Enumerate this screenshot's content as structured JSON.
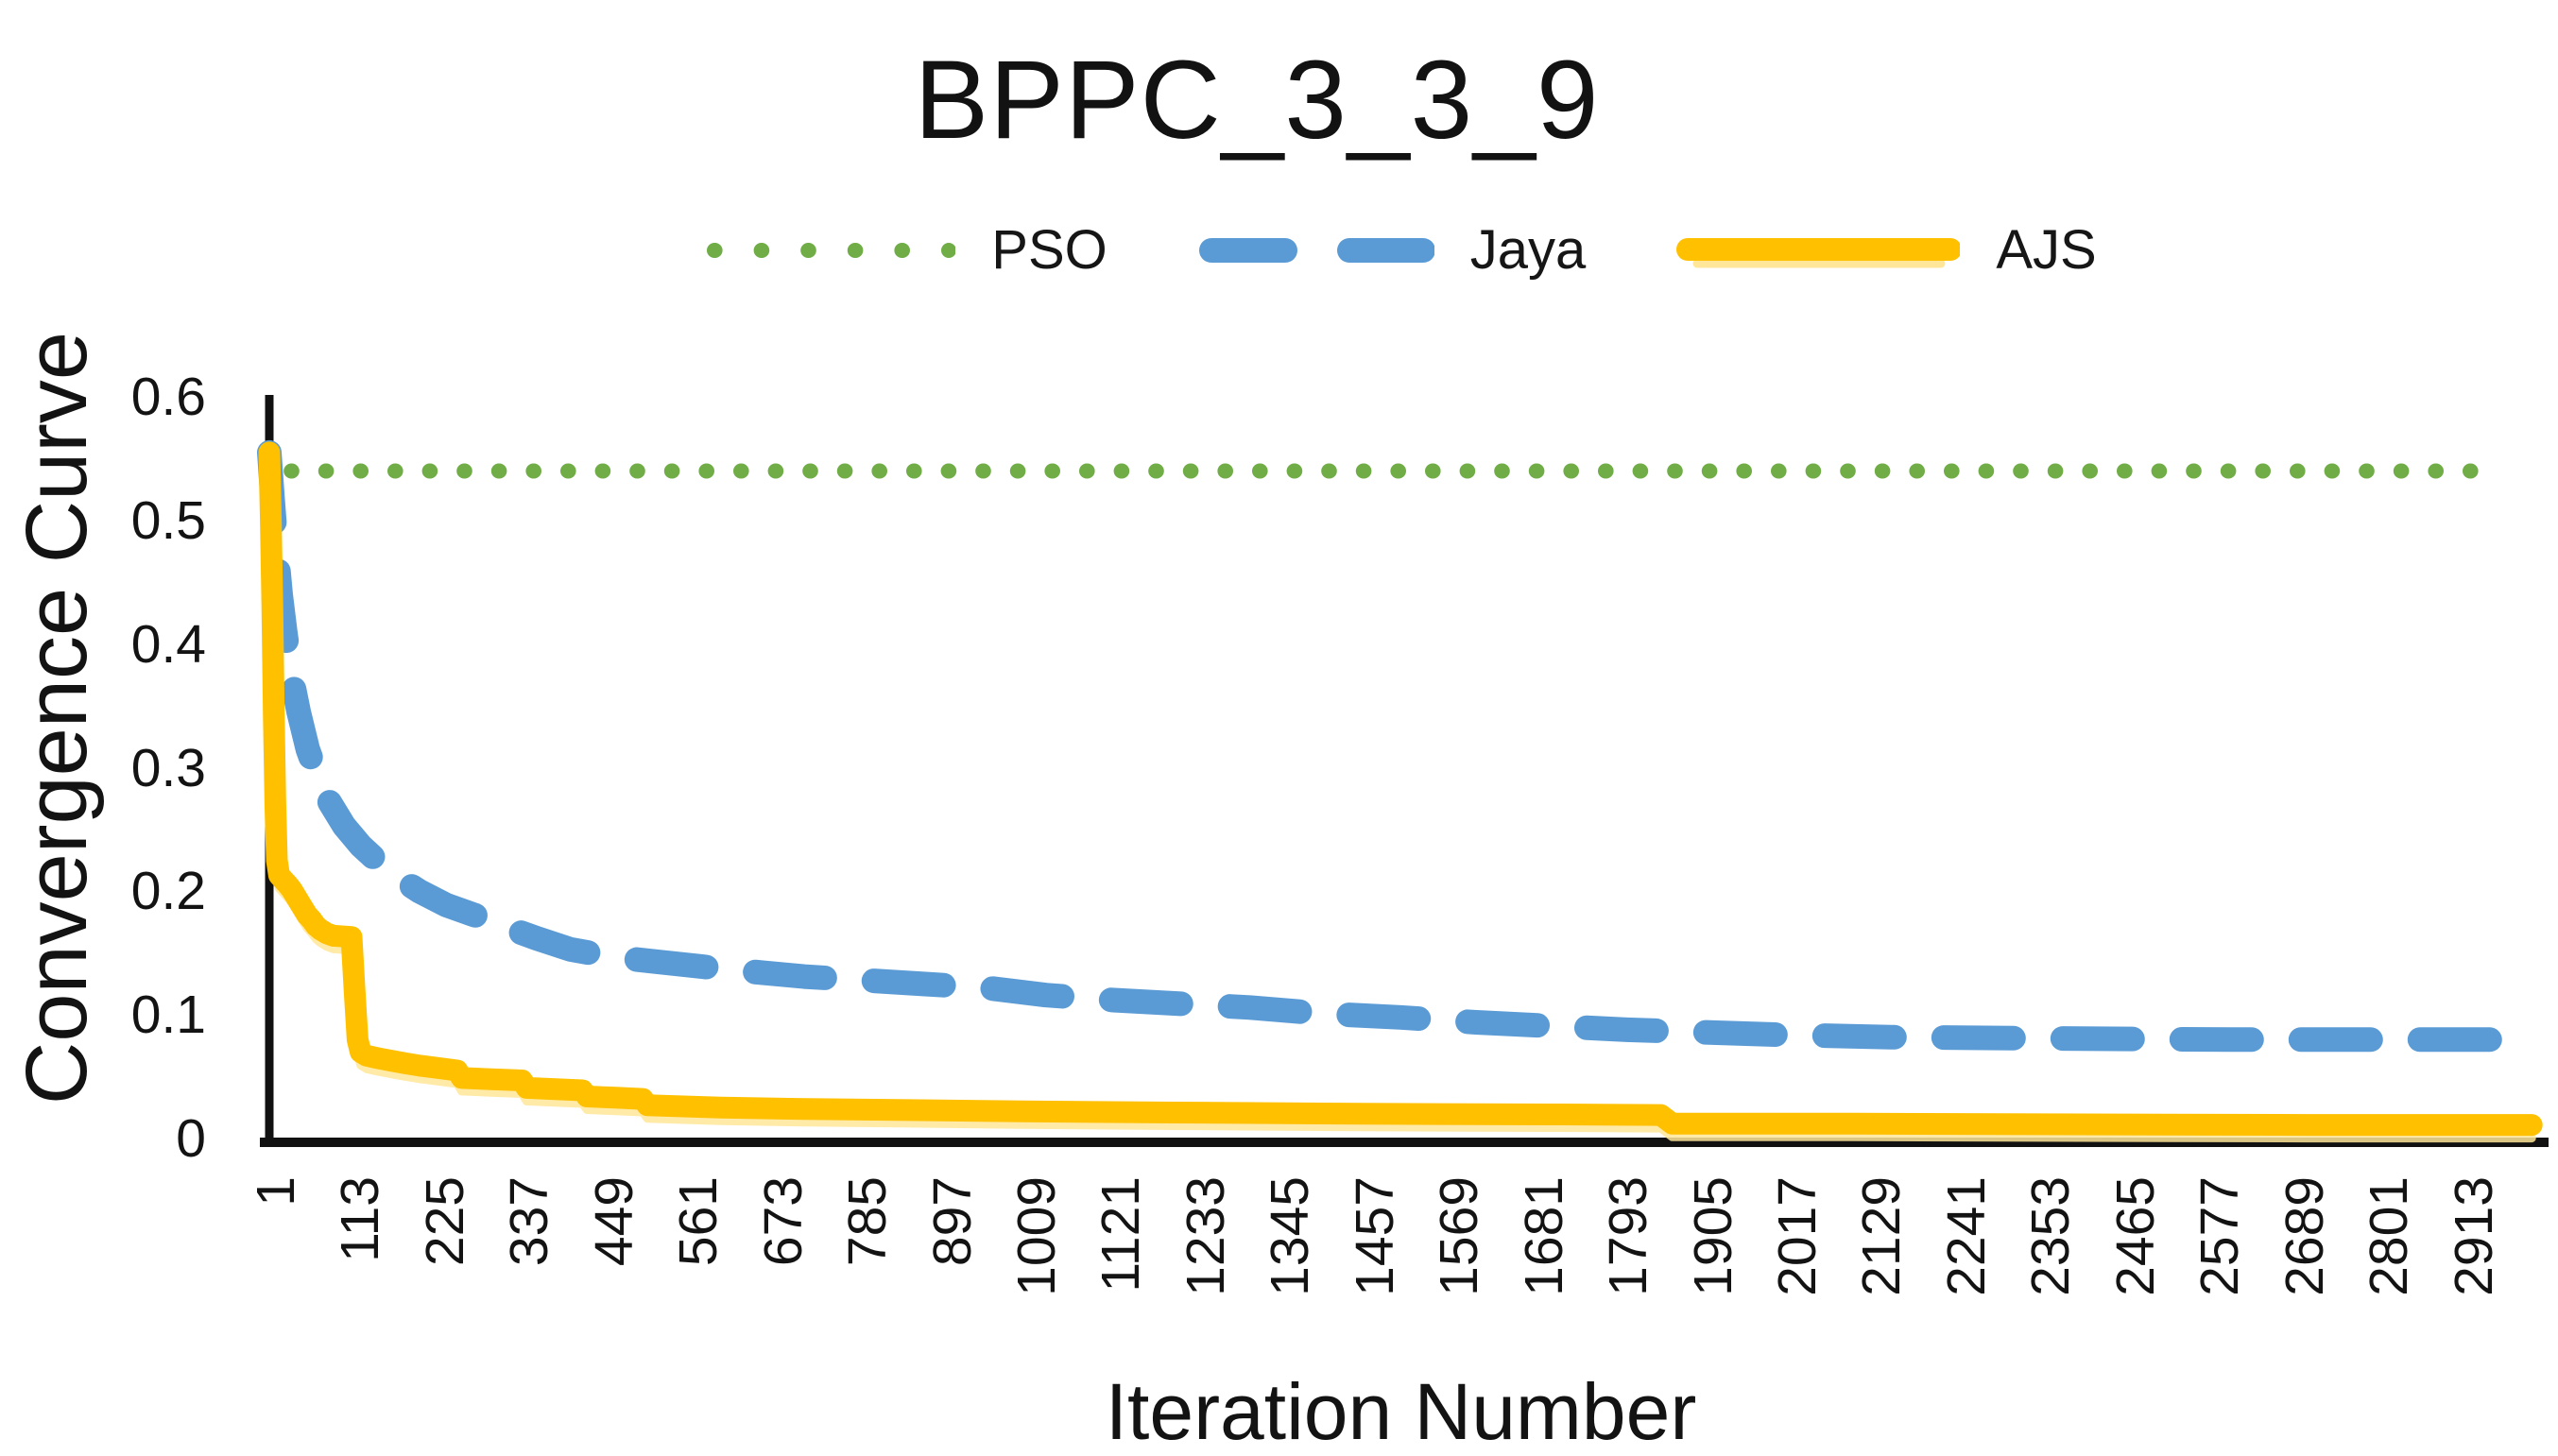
{
  "chart_data": {
    "type": "line",
    "title": "BPPC_3_3_9",
    "xlabel": "Iteration Number",
    "ylabel": "Convergence Curve",
    "xlim": [
      1,
      3000
    ],
    "ylim": [
      0,
      0.6
    ],
    "grid": false,
    "legend_position": "top-center",
    "axis_color": "#111111",
    "x_ticks": [
      1,
      113,
      225,
      337,
      449,
      561,
      673,
      785,
      897,
      1009,
      1121,
      1233,
      1345,
      1457,
      1569,
      1681,
      1793,
      1905,
      2017,
      2129,
      2241,
      2353,
      2465,
      2577,
      2689,
      2801,
      2913
    ],
    "y_tick_labels": [
      "0.6",
      "0.5",
      "0.4",
      "0.3",
      "0.2",
      "0.1",
      "0"
    ],
    "y_tick_values": [
      0.6,
      0.5,
      0.4,
      0.3,
      0.2,
      0.1,
      0
    ],
    "series": [
      {
        "name": "PSO",
        "color": "#70AD47",
        "style": "dotted",
        "points": [
          [
            30,
            0.54
          ],
          [
            2960,
            0.54
          ]
        ]
      },
      {
        "name": "Jaya",
        "color": "#5B9BD5",
        "style": "dashed",
        "points": [
          [
            1,
            0.555
          ],
          [
            5,
            0.52
          ],
          [
            10,
            0.48
          ],
          [
            16,
            0.44
          ],
          [
            22,
            0.41
          ],
          [
            30,
            0.375
          ],
          [
            40,
            0.345
          ],
          [
            52,
            0.315
          ],
          [
            65,
            0.293
          ],
          [
            80,
            0.273
          ],
          [
            100,
            0.253
          ],
          [
            122,
            0.237
          ],
          [
            145,
            0.224
          ],
          [
            172,
            0.211
          ],
          [
            200,
            0.2
          ],
          [
            235,
            0.189
          ],
          [
            272,
            0.181
          ],
          [
            310,
            0.172
          ],
          [
            355,
            0.162
          ],
          [
            400,
            0.153
          ],
          [
            455,
            0.147
          ],
          [
            515,
            0.143
          ],
          [
            575,
            0.139
          ],
          [
            640,
            0.135
          ],
          [
            710,
            0.131
          ],
          [
            790,
            0.128
          ],
          [
            870,
            0.125
          ],
          [
            950,
            0.122
          ],
          [
            1030,
            0.116
          ],
          [
            1120,
            0.112
          ],
          [
            1210,
            0.109
          ],
          [
            1300,
            0.106
          ],
          [
            1400,
            0.101
          ],
          [
            1500,
            0.098
          ],
          [
            1600,
            0.094
          ],
          [
            1700,
            0.091
          ],
          [
            1800,
            0.088
          ],
          [
            1900,
            0.086
          ],
          [
            2000,
            0.084
          ],
          [
            2150,
            0.082
          ],
          [
            2350,
            0.081
          ],
          [
            2600,
            0.08
          ],
          [
            2999,
            0.08
          ]
        ]
      },
      {
        "name": "AJS",
        "color": "#FFC000",
        "style": "solid",
        "glow_color": "#FFE699",
        "points": [
          [
            1,
            0.555
          ],
          [
            3,
            0.5
          ],
          [
            5,
            0.43
          ],
          [
            7,
            0.34
          ],
          [
            9,
            0.27
          ],
          [
            11,
            0.225
          ],
          [
            14,
            0.213
          ],
          [
            20,
            0.209
          ],
          [
            26,
            0.205
          ],
          [
            31,
            0.201
          ],
          [
            36,
            0.196
          ],
          [
            41,
            0.191
          ],
          [
            46,
            0.186
          ],
          [
            51,
            0.181
          ],
          [
            57,
            0.177
          ],
          [
            63,
            0.172
          ],
          [
            69,
            0.169
          ],
          [
            77,
            0.166
          ],
          [
            86,
            0.164
          ],
          [
            110,
            0.163
          ],
          [
            114,
            0.12
          ],
          [
            118,
            0.08
          ],
          [
            122,
            0.07
          ],
          [
            130,
            0.067
          ],
          [
            145,
            0.065
          ],
          [
            162,
            0.063
          ],
          [
            180,
            0.061
          ],
          [
            200,
            0.059
          ],
          [
            225,
            0.057
          ],
          [
            250,
            0.055
          ],
          [
            256,
            0.049
          ],
          [
            295,
            0.048
          ],
          [
            336,
            0.047
          ],
          [
            342,
            0.041
          ],
          [
            380,
            0.04
          ],
          [
            416,
            0.039
          ],
          [
            422,
            0.034
          ],
          [
            460,
            0.033
          ],
          [
            496,
            0.032
          ],
          [
            502,
            0.027
          ],
          [
            550,
            0.026
          ],
          [
            600,
            0.025
          ],
          [
            700,
            0.024
          ],
          [
            850,
            0.023
          ],
          [
            1000,
            0.022
          ],
          [
            1200,
            0.021
          ],
          [
            1450,
            0.02
          ],
          [
            1700,
            0.0195
          ],
          [
            1845,
            0.019
          ],
          [
            1860,
            0.012
          ],
          [
            2100,
            0.012
          ],
          [
            2400,
            0.0115
          ],
          [
            2700,
            0.011
          ],
          [
            2999,
            0.011
          ]
        ]
      }
    ]
  }
}
